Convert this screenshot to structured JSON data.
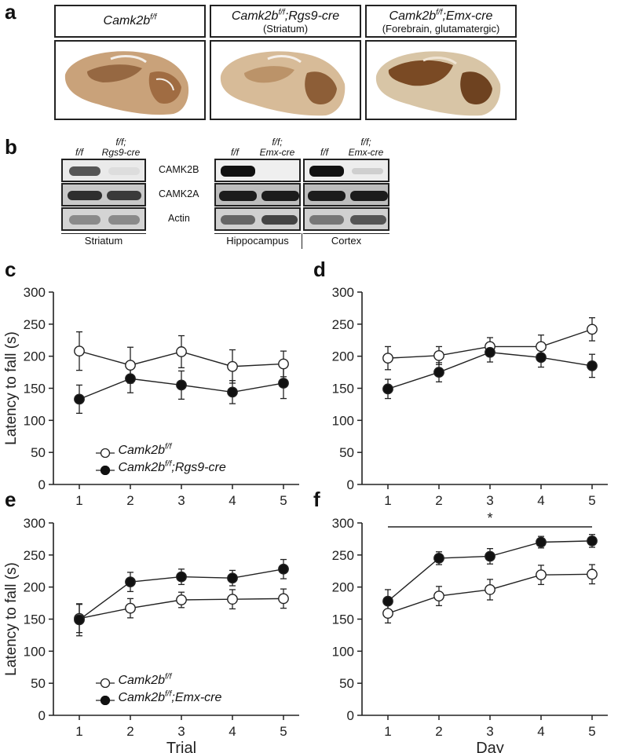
{
  "panels": {
    "a": "a",
    "b": "b",
    "c": "c",
    "d": "d",
    "e": "e",
    "f": "f"
  },
  "panel_a": {
    "genotypes": [
      {
        "base": "Camk2b",
        "sup": "f/f",
        "rest": "",
        "region": ""
      },
      {
        "base": "Camk2b",
        "sup": "f/f",
        "rest": ";Rgs9-cre",
        "region": "(Striatum)"
      },
      {
        "base": "Camk2b",
        "sup": "f/f",
        "rest": ";Emx-cre",
        "region": "(Forebrain, glutamatergic)"
      }
    ]
  },
  "panel_b": {
    "lane_labels": {
      "ff": "f/f",
      "rgs9_a": "f/f;",
      "rgs9_b": "Rgs9-cre",
      "emx_a": "f/f;",
      "emx_b": "Emx-cre"
    },
    "rows": [
      "CAMK2B",
      "CAMK2A",
      "Actin"
    ],
    "regions": [
      "Striatum",
      "Hippocampus",
      "Cortex"
    ]
  },
  "legend_rgs9": {
    "open": {
      "base": "Camk2b",
      "sup": "f/f",
      "rest": ""
    },
    "filled": {
      "base": "Camk2b",
      "sup": "f/f",
      "rest": ";Rgs9-cre"
    }
  },
  "legend_emx": {
    "open": {
      "base": "Camk2b",
      "sup": "f/f",
      "rest": ""
    },
    "filled": {
      "base": "Camk2b",
      "sup": "f/f",
      "rest": ";Emx-cre"
    }
  },
  "chart_data": [
    {
      "panel": "c",
      "type": "line",
      "ylabel": "Latency to fall (s)",
      "xlabel": "",
      "x": [
        1,
        2,
        3,
        4,
        5
      ],
      "ylim": [
        0,
        300
      ],
      "yticks": [
        0,
        50,
        100,
        150,
        200,
        250,
        300
      ],
      "series": [
        {
          "name": "Camk2b f/f",
          "marker": "open",
          "values": [
            208,
            186,
            207,
            184,
            188
          ],
          "err": [
            30,
            28,
            25,
            26,
            20
          ]
        },
        {
          "name": "Camk2b f/f;Rgs9-cre",
          "marker": "filled",
          "values": [
            133,
            165,
            155,
            144,
            158
          ],
          "err": [
            22,
            22,
            22,
            18,
            24
          ]
        }
      ]
    },
    {
      "panel": "d",
      "type": "line",
      "ylabel": "",
      "xlabel": "",
      "x": [
        1,
        2,
        3,
        4,
        5
      ],
      "ylim": [
        0,
        300
      ],
      "yticks": [
        0,
        50,
        100,
        150,
        200,
        250,
        300
      ],
      "series": [
        {
          "name": "",
          "marker": "open",
          "values": [
            197,
            201,
            215,
            215,
            242
          ],
          "err": [
            18,
            14,
            14,
            18,
            18
          ]
        },
        {
          "name": "",
          "marker": "filled",
          "values": [
            149,
            175,
            206,
            198,
            185
          ],
          "err": [
            15,
            15,
            15,
            15,
            18
          ]
        }
      ]
    },
    {
      "panel": "e",
      "type": "line",
      "ylabel": "Latency to fall (s)",
      "xlabel": "Trial",
      "x": [
        1,
        2,
        3,
        4,
        5
      ],
      "ylim": [
        0,
        300
      ],
      "yticks": [
        0,
        50,
        100,
        150,
        200,
        250,
        300
      ],
      "series": [
        {
          "name": "Camk2b f/f",
          "marker": "open",
          "values": [
            151,
            167,
            180,
            181,
            182
          ],
          "err": [
            22,
            15,
            12,
            15,
            15
          ]
        },
        {
          "name": "Camk2b f/f;Emx-cre",
          "marker": "filled",
          "values": [
            149,
            208,
            216,
            214,
            228
          ],
          "err": [
            25,
            15,
            12,
            12,
            15
          ]
        }
      ]
    },
    {
      "panel": "f",
      "type": "line",
      "ylabel": "",
      "xlabel": "Day",
      "x": [
        1,
        2,
        3,
        4,
        5
      ],
      "ylim": [
        0,
        300
      ],
      "yticks": [
        0,
        50,
        100,
        150,
        200,
        250,
        300
      ],
      "annotation": "*",
      "series": [
        {
          "name": "",
          "marker": "open",
          "values": [
            159,
            186,
            196,
            219,
            220
          ],
          "err": [
            15,
            15,
            16,
            15,
            15
          ]
        },
        {
          "name": "",
          "marker": "filled",
          "values": [
            178,
            245,
            248,
            270,
            272
          ],
          "err": [
            18,
            10,
            12,
            9,
            10
          ]
        }
      ]
    }
  ]
}
